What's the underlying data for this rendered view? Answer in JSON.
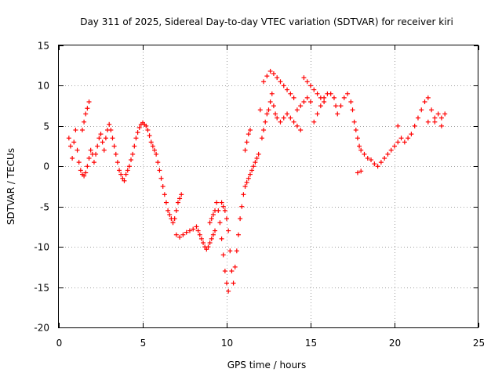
{
  "chart_data": {
    "type": "scatter",
    "title": "Day 311 of 2025, Sidereal Day-to-day VTEC variation (SDTVAR) for receiver kiri",
    "xlabel": "GPS time / hours",
    "ylabel": "SDTVAR / TECUs",
    "xlim": [
      0,
      25
    ],
    "ylim": [
      -20,
      15
    ],
    "x_ticks": [
      0,
      5,
      10,
      15,
      20,
      25
    ],
    "y_ticks": [
      -20,
      -15,
      -10,
      -5,
      0,
      5,
      10,
      15
    ],
    "x_tick_labels": [
      "0",
      "5",
      "10",
      "15",
      "20",
      "25"
    ],
    "y_tick_labels": [
      "-20",
      "-15",
      "-10",
      "-5",
      "0",
      "5",
      "10",
      "15"
    ],
    "grid": true,
    "marker": "plus",
    "color": "#ff0000",
    "series": [
      {
        "points": [
          [
            0.6,
            3.5
          ],
          [
            0.7,
            2.5
          ],
          [
            0.8,
            1.0
          ],
          [
            0.9,
            3.0
          ],
          [
            1.0,
            4.5
          ],
          [
            1.1,
            2.0
          ],
          [
            1.2,
            0.5
          ],
          [
            1.3,
            -0.5
          ],
          [
            1.4,
            -1.0
          ],
          [
            1.5,
            -1.2
          ],
          [
            1.6,
            -0.8
          ],
          [
            1.7,
            0.0
          ],
          [
            1.8,
            1.0
          ],
          [
            1.4,
            4.5
          ],
          [
            1.5,
            5.5
          ],
          [
            1.6,
            6.5
          ],
          [
            1.7,
            7.2
          ],
          [
            1.8,
            8.0
          ],
          [
            1.9,
            2.0
          ],
          [
            2.0,
            1.5
          ],
          [
            2.1,
            0.5
          ],
          [
            2.2,
            1.5
          ],
          [
            2.3,
            2.5
          ],
          [
            2.4,
            3.5
          ],
          [
            2.5,
            4.0
          ],
          [
            2.6,
            3.0
          ],
          [
            2.7,
            2.0
          ],
          [
            2.8,
            3.5
          ],
          [
            2.9,
            4.5
          ],
          [
            3.0,
            5.2
          ],
          [
            3.1,
            4.5
          ],
          [
            3.2,
            3.5
          ],
          [
            3.3,
            2.5
          ],
          [
            3.4,
            1.5
          ],
          [
            3.5,
            0.5
          ],
          [
            3.6,
            -0.5
          ],
          [
            3.7,
            -1.0
          ],
          [
            3.8,
            -1.5
          ],
          [
            3.9,
            -1.8
          ],
          [
            4.0,
            -1.0
          ],
          [
            4.1,
            -0.5
          ],
          [
            4.2,
            0.0
          ],
          [
            4.3,
            0.8
          ],
          [
            4.4,
            1.5
          ],
          [
            4.5,
            2.5
          ],
          [
            4.6,
            3.5
          ],
          [
            4.7,
            4.2
          ],
          [
            4.8,
            4.8
          ],
          [
            4.9,
            5.2
          ],
          [
            5.0,
            5.4
          ],
          [
            5.1,
            5.2
          ],
          [
            5.2,
            5.0
          ],
          [
            5.3,
            4.5
          ],
          [
            5.4,
            3.8
          ],
          [
            5.5,
            3.0
          ],
          [
            5.6,
            2.5
          ],
          [
            5.7,
            2.0
          ],
          [
            5.8,
            1.5
          ],
          [
            5.9,
            0.5
          ],
          [
            6.0,
            -0.5
          ],
          [
            6.1,
            -1.5
          ],
          [
            6.2,
            -2.5
          ],
          [
            6.3,
            -3.5
          ],
          [
            6.4,
            -4.5
          ],
          [
            6.5,
            -5.5
          ],
          [
            6.6,
            -6.0
          ],
          [
            6.7,
            -6.5
          ],
          [
            6.8,
            -7.0
          ],
          [
            6.9,
            -6.5
          ],
          [
            7.0,
            -5.5
          ],
          [
            7.1,
            -4.5
          ],
          [
            7.2,
            -4.0
          ],
          [
            7.3,
            -3.5
          ],
          [
            7.0,
            -8.5
          ],
          [
            7.2,
            -8.8
          ],
          [
            7.4,
            -8.5
          ],
          [
            7.6,
            -8.2
          ],
          [
            7.8,
            -8.0
          ],
          [
            8.0,
            -7.8
          ],
          [
            8.2,
            -7.5
          ],
          [
            8.3,
            -8.0
          ],
          [
            8.4,
            -8.5
          ],
          [
            8.5,
            -9.0
          ],
          [
            8.6,
            -9.5
          ],
          [
            8.7,
            -10.0
          ],
          [
            8.8,
            -10.3
          ],
          [
            8.9,
            -10.0
          ],
          [
            9.0,
            -9.5
          ],
          [
            9.1,
            -9.0
          ],
          [
            9.2,
            -8.5
          ],
          [
            9.3,
            -8.0
          ],
          [
            9.0,
            -7.0
          ],
          [
            9.1,
            -6.5
          ],
          [
            9.2,
            -6.0
          ],
          [
            9.3,
            -5.5
          ],
          [
            9.4,
            -4.5
          ],
          [
            9.5,
            -5.5
          ],
          [
            9.6,
            -7.0
          ],
          [
            9.7,
            -9.0
          ],
          [
            9.8,
            -11.0
          ],
          [
            9.9,
            -13.0
          ],
          [
            10.0,
            -14.5
          ],
          [
            10.1,
            -15.5
          ],
          [
            9.7,
            -4.5
          ],
          [
            9.8,
            -5.0
          ],
          [
            9.9,
            -5.5
          ],
          [
            10.0,
            -6.5
          ],
          [
            10.1,
            -8.0
          ],
          [
            10.2,
            -10.5
          ],
          [
            10.3,
            -13.0
          ],
          [
            10.4,
            -14.5
          ],
          [
            10.5,
            -12.5
          ],
          [
            10.6,
            -10.5
          ],
          [
            10.7,
            -8.5
          ],
          [
            10.8,
            -6.5
          ],
          [
            10.9,
            -5.0
          ],
          [
            11.0,
            -3.5
          ],
          [
            11.1,
            -2.5
          ],
          [
            11.2,
            -2.0
          ],
          [
            11.3,
            -1.5
          ],
          [
            11.4,
            -1.0
          ],
          [
            11.5,
            -0.5
          ],
          [
            11.6,
            0.0
          ],
          [
            11.7,
            0.5
          ],
          [
            11.8,
            1.0
          ],
          [
            11.9,
            1.5
          ],
          [
            11.1,
            2.0
          ],
          [
            11.2,
            3.0
          ],
          [
            11.3,
            4.0
          ],
          [
            11.4,
            4.5
          ],
          [
            12.0,
            7.0
          ],
          [
            12.1,
            3.5
          ],
          [
            12.2,
            4.5
          ],
          [
            12.3,
            5.5
          ],
          [
            12.4,
            6.5
          ],
          [
            12.5,
            7.0
          ],
          [
            12.6,
            8.0
          ],
          [
            12.7,
            9.0
          ],
          [
            12.8,
            7.5
          ],
          [
            12.9,
            6.5
          ],
          [
            13.0,
            6.0
          ],
          [
            12.2,
            10.5
          ],
          [
            12.4,
            11.2
          ],
          [
            12.6,
            11.8
          ],
          [
            12.8,
            11.5
          ],
          [
            13.0,
            11.0
          ],
          [
            13.2,
            10.5
          ],
          [
            13.4,
            10.0
          ],
          [
            13.6,
            9.5
          ],
          [
            13.8,
            9.0
          ],
          [
            14.0,
            8.5
          ],
          [
            13.2,
            5.5
          ],
          [
            13.4,
            6.0
          ],
          [
            13.6,
            6.5
          ],
          [
            13.8,
            6.0
          ],
          [
            14.0,
            5.5
          ],
          [
            14.2,
            5.0
          ],
          [
            14.4,
            4.5
          ],
          [
            14.2,
            7.0
          ],
          [
            14.4,
            7.5
          ],
          [
            14.6,
            8.0
          ],
          [
            14.8,
            8.5
          ],
          [
            15.0,
            8.0
          ],
          [
            14.6,
            11.0
          ],
          [
            14.8,
            10.5
          ],
          [
            15.0,
            10.0
          ],
          [
            15.2,
            9.5
          ],
          [
            15.4,
            9.0
          ],
          [
            15.6,
            8.5
          ],
          [
            15.8,
            8.0
          ],
          [
            15.2,
            5.5
          ],
          [
            15.4,
            6.5
          ],
          [
            15.6,
            7.5
          ],
          [
            15.8,
            8.5
          ],
          [
            16.0,
            9.0
          ],
          [
            16.2,
            9.0
          ],
          [
            16.4,
            8.5
          ],
          [
            16.5,
            7.5
          ],
          [
            16.6,
            6.5
          ],
          [
            16.8,
            7.5
          ],
          [
            17.0,
            8.5
          ],
          [
            17.2,
            9.0
          ],
          [
            17.4,
            8.0
          ],
          [
            17.5,
            7.0
          ],
          [
            17.6,
            5.5
          ],
          [
            17.7,
            4.5
          ],
          [
            17.8,
            3.5
          ],
          [
            17.9,
            2.5
          ],
          [
            18.0,
            2.0
          ],
          [
            18.2,
            1.5
          ],
          [
            18.4,
            1.0
          ],
          [
            18.6,
            0.8
          ],
          [
            18.8,
            0.3
          ],
          [
            19.0,
            0.0
          ],
          [
            19.2,
            0.5
          ],
          [
            19.4,
            1.0
          ],
          [
            19.6,
            1.5
          ],
          [
            19.8,
            2.0
          ],
          [
            20.0,
            2.5
          ],
          [
            17.8,
            -0.8
          ],
          [
            18.0,
            -0.6
          ],
          [
            20.2,
            3.0
          ],
          [
            20.4,
            3.5
          ],
          [
            20.6,
            3.0
          ],
          [
            20.8,
            3.5
          ],
          [
            21.0,
            4.0
          ],
          [
            21.2,
            5.0
          ],
          [
            21.4,
            6.0
          ],
          [
            21.6,
            7.0
          ],
          [
            21.8,
            8.0
          ],
          [
            22.0,
            8.5
          ],
          [
            22.2,
            7.0
          ],
          [
            22.4,
            6.0
          ],
          [
            22.6,
            6.5
          ],
          [
            22.8,
            6.0
          ],
          [
            23.0,
            6.5
          ],
          [
            22.0,
            5.5
          ],
          [
            22.4,
            5.5
          ],
          [
            22.8,
            5.0
          ],
          [
            20.2,
            5.0
          ]
        ]
      }
    ]
  }
}
